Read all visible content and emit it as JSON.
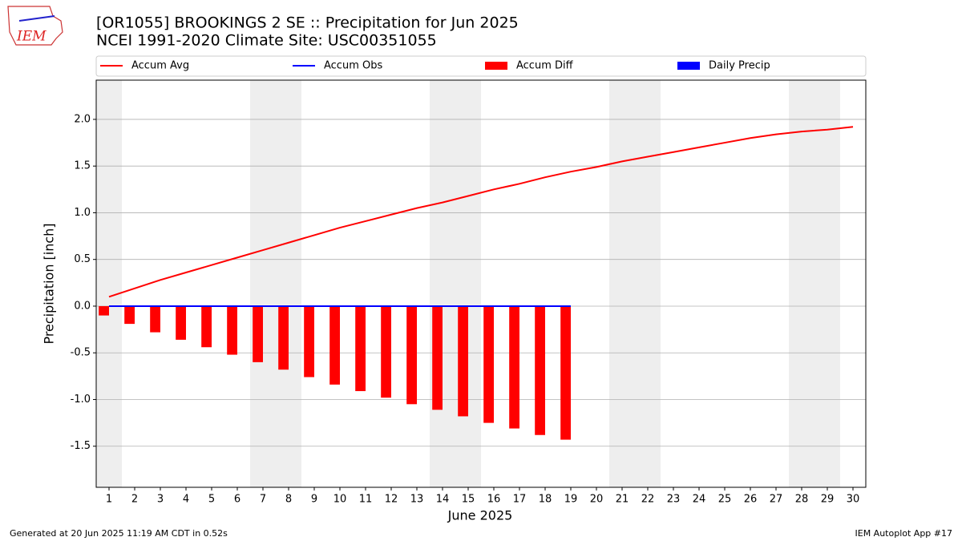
{
  "logo_text": "IEM",
  "footer_left": "Generated at 20 Jun 2025 11:19 AM CDT in 0.52s",
  "footer_right": "IEM Autoplot App #17",
  "chart_data": {
    "type": "combo",
    "title": "[OR1055] BROOKINGS 2 SE :: Precipitation for Jun 2025",
    "subtitle": "NCEI 1991-2020 Climate Site: USC00351055",
    "xlabel": "June 2025",
    "ylabel": "Precipitation [inch]",
    "x": [
      1,
      2,
      3,
      4,
      5,
      6,
      7,
      8,
      9,
      10,
      11,
      12,
      13,
      14,
      15,
      16,
      17,
      18,
      19,
      20,
      21,
      22,
      23,
      24,
      25,
      26,
      27,
      28,
      29,
      30
    ],
    "xlim": [
      0.5,
      30.5
    ],
    "xticks": [
      1,
      2,
      3,
      4,
      5,
      6,
      7,
      8,
      9,
      10,
      11,
      12,
      13,
      14,
      15,
      16,
      17,
      18,
      19,
      20,
      21,
      22,
      23,
      24,
      25,
      26,
      27,
      28,
      29,
      30
    ],
    "ylim": [
      -1.94,
      2.42
    ],
    "yticks": [
      -1.5,
      {
        "value": -1.0,
        "label": "-1.0"
      },
      -0.5,
      {
        "value": 0.0,
        "label": "0.0"
      },
      0.5,
      {
        "value": 1.0,
        "label": "1.0"
      },
      1.5,
      {
        "value": 2.0,
        "label": "2.0"
      }
    ],
    "grid": true,
    "shaded_days": [
      1,
      7,
      8,
      14,
      15,
      21,
      22,
      28,
      29
    ],
    "shade_color": "#eeeeee",
    "series": [
      {
        "name": "Accum Avg",
        "type": "line",
        "color": "#ff0000",
        "values": [
          0.1,
          0.19,
          0.28,
          0.36,
          0.44,
          0.52,
          0.6,
          0.68,
          0.76,
          0.84,
          0.91,
          0.98,
          1.05,
          1.11,
          1.18,
          1.25,
          1.31,
          1.38,
          1.44,
          1.49,
          1.55,
          1.6,
          1.65,
          1.7,
          1.75,
          1.8,
          1.84,
          1.87,
          1.89,
          1.92
        ]
      },
      {
        "name": "Accum Obs",
        "type": "line",
        "color": "#0000ff",
        "values": [
          0,
          0,
          0,
          0,
          0,
          0,
          0,
          0,
          0,
          0,
          0,
          0,
          0,
          0,
          0,
          0,
          0,
          0,
          0,
          null,
          null,
          null,
          null,
          null,
          null,
          null,
          null,
          null,
          null,
          null
        ]
      },
      {
        "name": "Accum Diff",
        "type": "bar",
        "color": "#ff0000",
        "values": [
          -0.1,
          -0.19,
          -0.28,
          -0.36,
          -0.44,
          -0.52,
          -0.6,
          -0.68,
          -0.76,
          -0.84,
          -0.91,
          -0.98,
          -1.05,
          -1.11,
          -1.18,
          -1.25,
          -1.31,
          -1.38,
          -1.43,
          null,
          null,
          null,
          null,
          null,
          null,
          null,
          null,
          null,
          null,
          null
        ]
      },
      {
        "name": "Daily Precip",
        "type": "bar",
        "color": "#0000ff",
        "values": [
          0,
          0,
          0,
          0,
          0,
          0,
          0,
          0,
          0,
          0,
          0,
          0,
          0,
          0,
          0,
          0,
          0,
          0,
          0,
          null,
          null,
          null,
          null,
          null,
          null,
          null,
          null,
          null,
          null,
          null
        ]
      }
    ]
  }
}
